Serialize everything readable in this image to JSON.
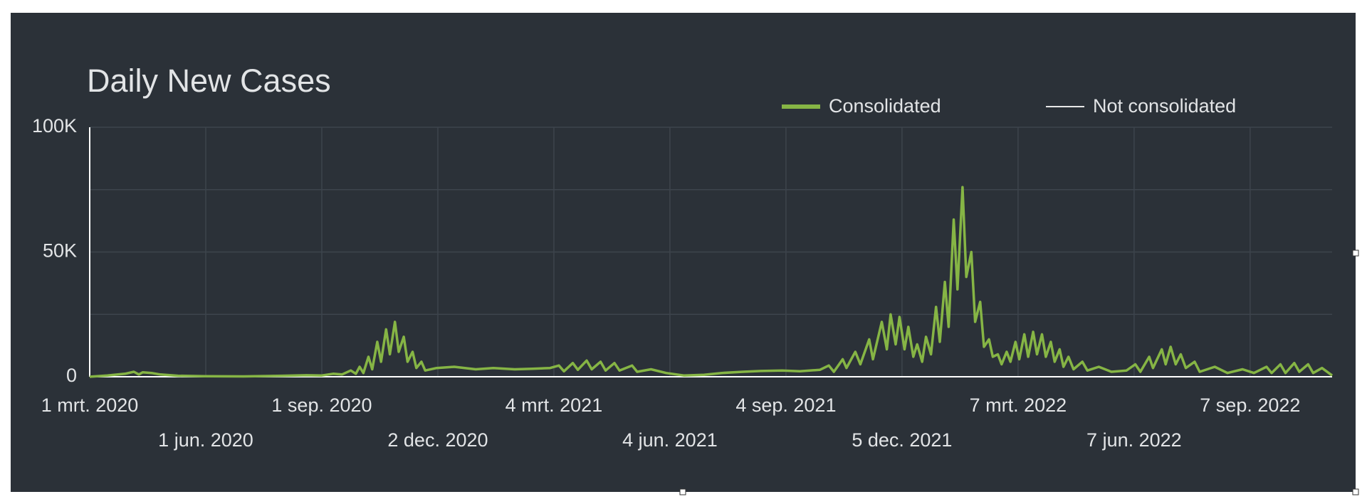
{
  "chart_data": {
    "type": "line",
    "title": "Daily New Cases",
    "x": [
      "2020-03-01",
      "2020-03-15",
      "2020-03-29",
      "2020-04-05",
      "2020-04-09",
      "2020-04-12",
      "2020-04-19",
      "2020-04-26",
      "2020-05-10",
      "2020-05-31",
      "2020-07-01",
      "2020-08-01",
      "2020-08-20",
      "2020-09-01",
      "2020-09-10",
      "2020-09-17",
      "2020-09-24",
      "2020-09-28",
      "2020-10-01",
      "2020-10-04",
      "2020-10-08",
      "2020-10-11",
      "2020-10-15",
      "2020-10-18",
      "2020-10-22",
      "2020-10-25",
      "2020-10-29",
      "2020-11-01",
      "2020-11-05",
      "2020-11-08",
      "2020-11-12",
      "2020-11-15",
      "2020-11-19",
      "2020-11-22",
      "2020-12-01",
      "2020-12-15",
      "2021-01-01",
      "2021-01-15",
      "2021-02-01",
      "2021-02-15",
      "2021-03-01",
      "2021-03-08",
      "2021-03-12",
      "2021-03-19",
      "2021-03-23",
      "2021-03-30",
      "2021-04-03",
      "2021-04-10",
      "2021-04-14",
      "2021-04-21",
      "2021-04-25",
      "2021-05-05",
      "2021-05-09",
      "2021-05-20",
      "2021-06-01",
      "2021-06-15",
      "2021-07-01",
      "2021-07-15",
      "2021-08-01",
      "2021-08-15",
      "2021-09-01",
      "2021-09-15",
      "2021-10-01",
      "2021-10-08",
      "2021-10-12",
      "2021-10-19",
      "2021-10-22",
      "2021-10-29",
      "2021-11-02",
      "2021-11-09",
      "2021-11-12",
      "2021-11-19",
      "2021-11-23",
      "2021-11-26",
      "2021-11-30",
      "2021-12-03",
      "2021-12-07",
      "2021-12-10",
      "2021-12-14",
      "2021-12-17",
      "2021-12-21",
      "2021-12-24",
      "2021-12-28",
      "2022-01-01",
      "2022-01-04",
      "2022-01-08",
      "2022-01-11",
      "2022-01-15",
      "2022-01-18",
      "2022-01-22",
      "2022-01-25",
      "2022-01-29",
      "2022-02-01",
      "2022-02-05",
      "2022-02-08",
      "2022-02-12",
      "2022-02-15",
      "2022-02-19",
      "2022-02-22",
      "2022-02-26",
      "2022-03-01",
      "2022-03-05",
      "2022-03-08",
      "2022-03-12",
      "2022-03-15",
      "2022-03-19",
      "2022-03-22",
      "2022-03-26",
      "2022-03-29",
      "2022-04-02",
      "2022-04-05",
      "2022-04-09",
      "2022-04-12",
      "2022-04-16",
      "2022-04-20",
      "2022-04-27",
      "2022-05-01",
      "2022-05-10",
      "2022-05-20",
      "2022-06-01",
      "2022-06-08",
      "2022-06-12",
      "2022-06-19",
      "2022-06-22",
      "2022-06-29",
      "2022-07-02",
      "2022-07-06",
      "2022-07-10",
      "2022-07-14",
      "2022-07-18",
      "2022-07-25",
      "2022-07-29",
      "2022-08-10",
      "2022-08-20",
      "2022-09-01",
      "2022-09-10",
      "2022-09-20",
      "2022-09-24",
      "2022-10-01",
      "2022-10-05",
      "2022-10-12",
      "2022-10-16",
      "2022-10-23",
      "2022-10-27",
      "2022-11-03",
      "2022-11-11"
    ],
    "series": [
      {
        "name": "Consolidated",
        "color": "#86b545",
        "values": [
          0,
          500,
          1200,
          2000,
          900,
          1800,
          1500,
          900,
          400,
          200,
          150,
          400,
          600,
          500,
          1200,
          900,
          2500,
          1200,
          4000,
          1500,
          8000,
          3000,
          14000,
          6000,
          19000,
          9000,
          22000,
          10000,
          16000,
          6000,
          10000,
          3500,
          6000,
          2500,
          3500,
          4000,
          3000,
          3500,
          3000,
          3200,
          3500,
          4500,
          2200,
          5500,
          2800,
          6500,
          3000,
          6000,
          2500,
          5500,
          2500,
          4500,
          2000,
          3000,
          1500,
          500,
          800,
          1500,
          2000,
          2300,
          2500,
          2200,
          2800,
          4500,
          2000,
          7000,
          3500,
          10000,
          5000,
          15000,
          7000,
          22000,
          11000,
          25000,
          13000,
          24000,
          11000,
          20000,
          8000,
          13000,
          6000,
          16000,
          9000,
          28000,
          14000,
          38000,
          20000,
          63000,
          35000,
          76000,
          40000,
          50000,
          22000,
          30000,
          12000,
          15000,
          8000,
          9000,
          5000,
          10000,
          6000,
          14000,
          7000,
          17000,
          8000,
          18000,
          9000,
          17000,
          8000,
          14000,
          6000,
          11000,
          4000,
          8000,
          3000,
          6000,
          2500,
          4000,
          2000,
          2500,
          5000,
          2000,
          8000,
          3500,
          11000,
          5000,
          12000,
          5000,
          9000,
          3500,
          6000,
          2000,
          4000,
          1500,
          3000,
          1500,
          4000,
          1500,
          5000,
          1500,
          5500,
          2000,
          5000,
          1500,
          3500,
          500
        ]
      },
      {
        "name": "Not consolidated",
        "color": "#e8e8e8",
        "values": [
          null,
          null,
          null,
          null,
          null,
          null,
          null,
          null,
          null,
          null,
          null,
          null,
          null,
          null,
          null,
          null,
          null,
          null,
          null,
          null,
          null,
          null,
          null,
          null,
          null,
          null,
          null,
          null,
          null,
          null,
          null,
          null,
          null,
          null,
          null,
          null,
          null,
          null,
          null,
          null,
          null,
          null,
          null,
          null,
          null,
          null,
          null,
          null,
          null,
          null,
          null,
          null,
          null,
          null,
          null,
          null,
          null,
          null,
          null,
          null,
          null,
          null,
          null,
          null,
          null,
          null,
          null,
          null,
          null,
          null,
          null,
          null,
          null,
          null,
          null,
          null,
          null,
          null,
          null,
          null,
          null,
          null,
          null,
          null,
          null,
          null,
          null,
          null,
          null,
          null,
          null,
          null,
          null,
          null,
          null,
          null,
          null,
          null,
          null,
          null,
          null,
          null,
          null,
          null,
          null,
          null,
          null,
          null,
          null,
          null,
          null,
          null,
          null,
          null,
          null,
          null,
          null,
          null,
          null,
          null,
          null,
          null,
          null,
          null,
          null,
          null,
          null,
          null,
          null,
          null,
          null,
          null,
          null,
          null,
          null,
          null,
          null,
          null,
          null,
          null,
          null,
          null,
          null,
          null,
          null,
          null
        ]
      }
    ],
    "xlim": [
      "2020-03-01",
      "2022-11-11"
    ],
    "xticks": [
      {
        "value": "2020-03-01",
        "label": "1 mrt. 2020"
      },
      {
        "value": "2020-06-01",
        "label": "1 jun. 2020"
      },
      {
        "value": "2020-09-01",
        "label": "1 sep. 2020"
      },
      {
        "value": "2020-12-02",
        "label": "2 dec. 2020"
      },
      {
        "value": "2021-03-04",
        "label": "4 mrt. 2021"
      },
      {
        "value": "2021-06-04",
        "label": "4 jun. 2021"
      },
      {
        "value": "2021-09-04",
        "label": "4 sep. 2021"
      },
      {
        "value": "2021-12-05",
        "label": "5 dec. 2021"
      },
      {
        "value": "2022-03-07",
        "label": "7 mrt. 2022"
      },
      {
        "value": "2022-06-07",
        "label": "7 jun. 2022"
      },
      {
        "value": "2022-09-07",
        "label": "7 sep. 2022"
      }
    ],
    "ylim": [
      0,
      100000
    ],
    "yticks": [
      0,
      {
        "value": 50000,
        "label": "50K"
      },
      {
        "value": 100000,
        "label": "100K"
      }
    ],
    "minor_yticks": [
      25000,
      75000
    ],
    "grid": true,
    "legend": "top-right"
  }
}
